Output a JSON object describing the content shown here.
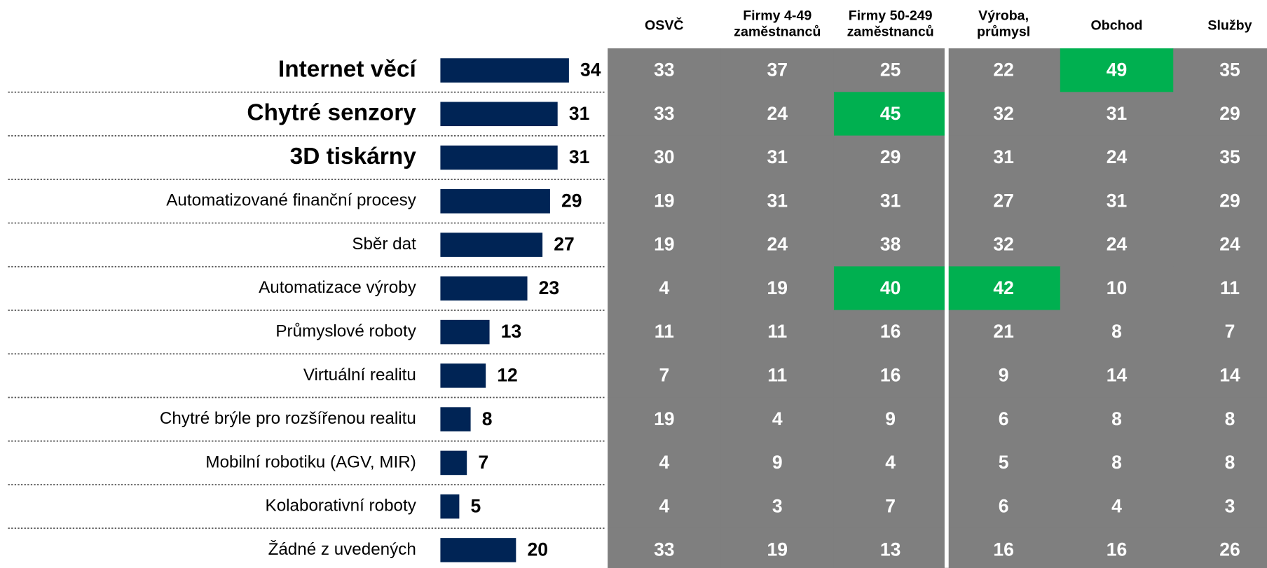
{
  "chart_data": {
    "type": "bar",
    "categories": [
      "Internet věcí",
      "Chytré senzory",
      "3D tiskárny",
      "Automatizované finanční procesy",
      "Sběr dat",
      "Automatizace výroby",
      "Průmyslové roboty",
      "Virtuální realitu",
      "Chytré brýle pro rozšířenou realitu",
      "Mobilní robotiku (AGV, MIR)",
      "Kolaborativní roboty",
      "Žádné z uvedených"
    ],
    "emphasized": [
      true,
      true,
      true,
      false,
      false,
      false,
      false,
      false,
      false,
      false,
      false,
      false
    ],
    "values": [
      34,
      31,
      31,
      29,
      27,
      23,
      13,
      12,
      8,
      7,
      5,
      20
    ],
    "color": "#002455",
    "breakdown": {
      "columns": [
        [
          "OSVČ"
        ],
        [
          "Firmy 4-49",
          "zaměstnanců"
        ],
        [
          "Firmy 50-249",
          "zaměstnanců"
        ],
        [
          "Výroba,",
          "průmysl"
        ],
        [
          "Obchod"
        ],
        [
          "Služby"
        ]
      ],
      "rows": [
        [
          33,
          37,
          25,
          22,
          49,
          35
        ],
        [
          33,
          24,
          45,
          32,
          31,
          29
        ],
        [
          30,
          31,
          29,
          31,
          24,
          35
        ],
        [
          19,
          31,
          31,
          27,
          31,
          29
        ],
        [
          19,
          24,
          38,
          32,
          24,
          24
        ],
        [
          4,
          19,
          40,
          42,
          10,
          11
        ],
        [
          11,
          11,
          16,
          21,
          8,
          7
        ],
        [
          7,
          11,
          16,
          9,
          14,
          14
        ],
        [
          19,
          4,
          9,
          6,
          8,
          8
        ],
        [
          4,
          9,
          4,
          5,
          8,
          8
        ],
        [
          4,
          3,
          7,
          6,
          4,
          3
        ],
        [
          33,
          19,
          13,
          16,
          16,
          26
        ]
      ],
      "cell_color": "#7f7f7f",
      "highlight_color": "#00b050",
      "highlighted": [
        [
          0,
          4
        ],
        [
          1,
          2
        ],
        [
          5,
          2
        ],
        [
          5,
          3
        ]
      ]
    }
  }
}
